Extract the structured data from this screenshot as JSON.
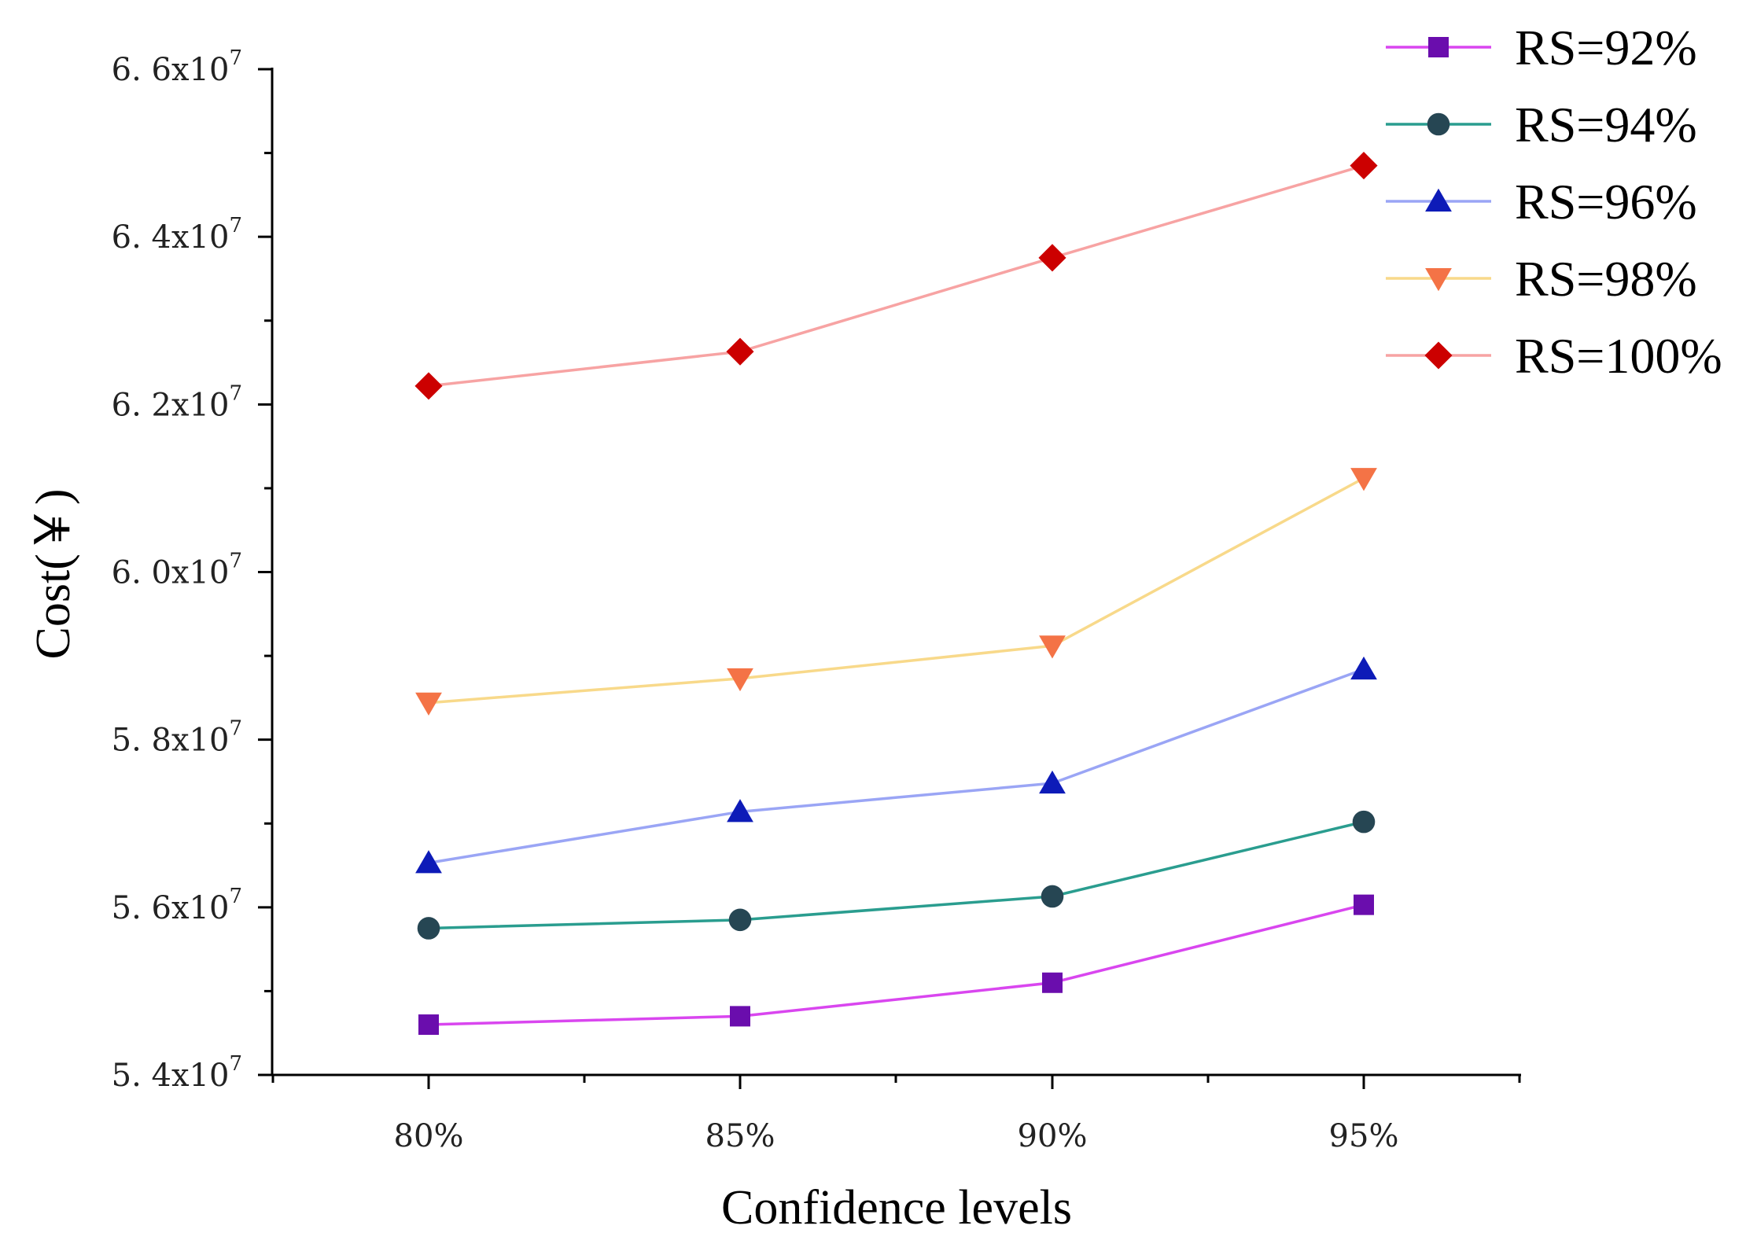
{
  "chart_data": {
    "type": "line",
    "title": "",
    "xlabel": "Confidence levels",
    "ylabel": "Cost(￥)",
    "categories": [
      "80%",
      "85%",
      "90%",
      "95%"
    ],
    "yticks": [
      {
        "mantissa": "5.4",
        "exp": "7"
      },
      {
        "mantissa": "5.6",
        "exp": "7"
      },
      {
        "mantissa": "5.8",
        "exp": "7"
      },
      {
        "mantissa": "6.0",
        "exp": "7"
      },
      {
        "mantissa": "6.2",
        "exp": "7"
      },
      {
        "mantissa": "6.4",
        "exp": "7"
      },
      {
        "mantissa": "6.6",
        "exp": "7"
      }
    ],
    "ylim": [
      54000000,
      66000000
    ],
    "legend_position": "top-right",
    "grid": false,
    "series": [
      {
        "name": "RS=92%",
        "marker": "square",
        "line_color": "#d946ef",
        "marker_color": "#6a0dad",
        "values": [
          54600000,
          54700000,
          55100000,
          56030000
        ]
      },
      {
        "name": "RS=94%",
        "marker": "circle",
        "line_color": "#2a9d8f",
        "marker_color": "#264653",
        "values": [
          55750000,
          55850000,
          56130000,
          57020000
        ]
      },
      {
        "name": "RS=96%",
        "marker": "triangle-up",
        "line_color": "#9aa5f5",
        "marker_color": "#0d1bb8",
        "values": [
          56530000,
          57140000,
          57480000,
          58840000
        ]
      },
      {
        "name": "RS=98%",
        "marker": "triangle-down",
        "line_color": "#f8d98a",
        "marker_color": "#f47346",
        "values": [
          58440000,
          58730000,
          59120000,
          61120000
        ]
      },
      {
        "name": "RS=100%",
        "marker": "diamond",
        "line_color": "#f7a3a3",
        "marker_color": "#cc0000",
        "values": [
          62220000,
          62630000,
          63750000,
          64850000
        ]
      }
    ]
  }
}
